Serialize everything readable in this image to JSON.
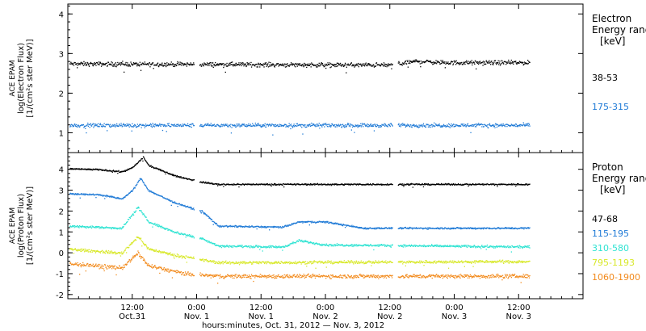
{
  "chart_data": [
    {
      "type": "scatter",
      "instrument_label": "ACE EPAM",
      "ylabel": "log(Electron Flux)",
      "yunits": "[1/(cm²s ster MeV)]",
      "ylim": [
        0.5,
        4.25
      ],
      "yticks": [
        1,
        2,
        3,
        4
      ],
      "legend_title": [
        "Electron",
        "Energy range",
        "[keV]"
      ],
      "series": [
        {
          "name": "38-53",
          "color": "#000000",
          "base": 2.75,
          "noise": 0.08,
          "profile": [
            [
              0,
              2.75
            ],
            [
              60,
              2.72
            ],
            [
              65,
              2.82
            ],
            [
              70,
              2.78
            ],
            [
              86,
              2.78
            ]
          ]
        },
        {
          "name": "175-315",
          "color": "#1f7ad6",
          "base": 1.2,
          "noise": 0.07,
          "profile": [
            [
              0,
              1.2
            ],
            [
              86,
              1.2
            ]
          ]
        }
      ]
    },
    {
      "type": "scatter",
      "instrument_label": "ACE EPAM",
      "ylabel": "log(Proton Flux)",
      "yunits": "[1/(cm²s ster MeV)]",
      "ylim": [
        -2.2,
        4.8
      ],
      "yticks": [
        -2,
        -1,
        0,
        1,
        2,
        3,
        4
      ],
      "legend_title": [
        "Proton",
        "Energy range",
        "[keV]"
      ],
      "series": [
        {
          "name": "47-68",
          "color": "#000000",
          "noise": 0.05,
          "profile": [
            [
              0,
              4.05
            ],
            [
              6,
              4.0
            ],
            [
              10,
              3.9
            ],
            [
              12,
              4.1
            ],
            [
              14,
              4.6
            ],
            [
              15,
              4.2
            ],
            [
              16,
              4.1
            ],
            [
              20,
              3.7
            ],
            [
              25,
              3.4
            ],
            [
              28,
              3.3
            ],
            [
              86,
              3.3
            ]
          ]
        },
        {
          "name": "115-195",
          "color": "#1f7ad6",
          "noise": 0.06,
          "profile": [
            [
              0,
              2.85
            ],
            [
              6,
              2.8
            ],
            [
              10,
              2.6
            ],
            [
              12,
              3.0
            ],
            [
              13.5,
              3.6
            ],
            [
              15,
              3.0
            ],
            [
              20,
              2.4
            ],
            [
              25,
              2.0
            ],
            [
              28,
              1.3
            ],
            [
              40,
              1.25
            ],
            [
              43,
              1.5
            ],
            [
              48,
              1.5
            ],
            [
              55,
              1.2
            ],
            [
              86,
              1.2
            ]
          ]
        },
        {
          "name": "310-580",
          "color": "#2fe3d2",
          "noise": 0.08,
          "profile": [
            [
              0,
              1.3
            ],
            [
              10,
              1.2
            ],
            [
              13,
              2.2
            ],
            [
              15,
              1.5
            ],
            [
              20,
              1.0
            ],
            [
              25,
              0.7
            ],
            [
              28,
              0.35
            ],
            [
              40,
              0.3
            ],
            [
              43,
              0.6
            ],
            [
              48,
              0.4
            ],
            [
              86,
              0.3
            ]
          ]
        },
        {
          "name": "795-1193",
          "color": "#d8e82a",
          "noise": 0.1,
          "profile": [
            [
              0,
              0.2
            ],
            [
              10,
              0.0
            ],
            [
              13,
              0.8
            ],
            [
              15,
              0.2
            ],
            [
              20,
              -0.1
            ],
            [
              28,
              -0.45
            ],
            [
              86,
              -0.4
            ]
          ]
        },
        {
          "name": "1060-1900",
          "color": "#f28a1c",
          "noise": 0.14,
          "profile": [
            [
              0,
              -0.5
            ],
            [
              10,
              -0.7
            ],
            [
              13,
              0.0
            ],
            [
              15,
              -0.6
            ],
            [
              22,
              -1.0
            ],
            [
              28,
              -1.1
            ],
            [
              86,
              -1.1
            ]
          ]
        }
      ]
    }
  ],
  "x_axis": {
    "xlim": [
      0,
      96
    ],
    "data_end": 86,
    "gaps": [
      [
        23.5,
        24.5
      ],
      [
        60.5,
        61.5
      ]
    ],
    "ticks": [
      {
        "x": 12,
        "time": "12:00",
        "date": "Oct.31"
      },
      {
        "x": 24,
        "time": "0:00",
        "date": "Nov. 1"
      },
      {
        "x": 36,
        "time": "12:00",
        "date": "Nov. 1"
      },
      {
        "x": 48,
        "time": "0:00",
        "date": "Nov. 2"
      },
      {
        "x": 60,
        "time": "12:00",
        "date": "Nov. 2"
      },
      {
        "x": 72,
        "time": "0:00",
        "date": "Nov. 3"
      },
      {
        "x": 84,
        "time": "12:00",
        "date": "Nov. 3"
      }
    ],
    "title": "hours:minutes, Oct. 31, 2012 — Nov.  3, 2012"
  }
}
